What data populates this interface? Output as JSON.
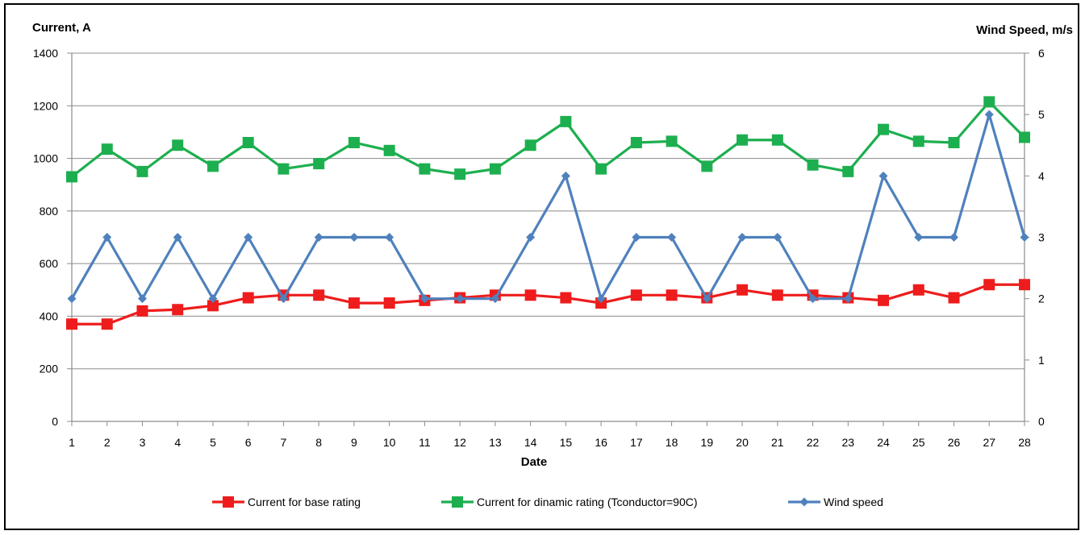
{
  "chart_data": {
    "type": "line",
    "xlabel": "Date",
    "ylabel_left": "Current, A",
    "ylabel_right": "Wind Speed, m/s",
    "x": [
      1,
      2,
      3,
      4,
      5,
      6,
      7,
      8,
      9,
      10,
      11,
      12,
      13,
      14,
      15,
      16,
      17,
      18,
      19,
      20,
      21,
      22,
      23,
      24,
      25,
      26,
      27,
      28
    ],
    "ylim_left": [
      0,
      1400
    ],
    "yticks_left": [
      0,
      200,
      400,
      600,
      800,
      1000,
      1200,
      1400
    ],
    "ylim_right": [
      0,
      6
    ],
    "yticks_right": [
      0,
      1,
      2,
      3,
      4,
      5,
      6
    ],
    "grid": "horizontal",
    "legend_position": "bottom",
    "series": [
      {
        "name": "Current for base rating",
        "axis": "left",
        "color": "#ee1c1c",
        "marker": "square",
        "values": [
          370,
          370,
          420,
          425,
          440,
          470,
          480,
          480,
          450,
          450,
          460,
          470,
          480,
          480,
          470,
          450,
          480,
          480,
          470,
          500,
          480,
          480,
          470,
          460,
          500,
          470,
          520,
          520
        ]
      },
      {
        "name": "Current for dinamic rating (Tconductor=90C)",
        "axis": "left",
        "color": "#1daf4f",
        "marker": "square",
        "values": [
          930,
          1035,
          950,
          1050,
          970,
          1060,
          960,
          980,
          1060,
          1030,
          960,
          940,
          960,
          1050,
          1140,
          960,
          1060,
          1065,
          970,
          1070,
          1070,
          975,
          950,
          1110,
          1065,
          1060,
          1215,
          1080
        ]
      },
      {
        "name": "Wind speed",
        "axis": "right",
        "color": "#4f81bd",
        "marker": "diamond",
        "values": [
          2,
          3,
          2,
          3,
          2,
          3,
          2,
          3,
          3,
          3,
          2,
          2,
          2,
          3,
          4,
          2,
          3,
          3,
          2,
          3,
          3,
          2,
          2,
          4,
          3,
          3,
          5,
          3
        ]
      }
    ]
  }
}
